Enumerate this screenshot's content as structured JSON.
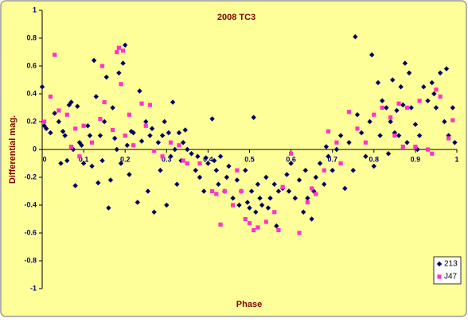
{
  "chart_data": {
    "type": "scatter",
    "title": "2008 TC3",
    "xlabel": "Phase",
    "ylabel": "Differential mag.",
    "xlim": [
      0,
      1
    ],
    "ylim": [
      -1,
      1
    ],
    "xticks": [
      0,
      0.1,
      0.2,
      0.3,
      0.4,
      0.5,
      0.6,
      0.7,
      0.8,
      0.9,
      1
    ],
    "yticks": [
      -1,
      -0.8,
      -0.6,
      -0.4,
      -0.2,
      0,
      0.2,
      0.4,
      0.6,
      0.8,
      1
    ],
    "grid": false,
    "legend": "lower right",
    "series": [
      {
        "name": "213",
        "color": "#000066",
        "marker": "diamond",
        "x": [
          0.0,
          0.005,
          0.01,
          0.02,
          0.03,
          0.04,
          0.045,
          0.05,
          0.055,
          0.06,
          0.065,
          0.07,
          0.075,
          0.08,
          0.085,
          0.09,
          0.095,
          0.1,
          0.11,
          0.115,
          0.12,
          0.125,
          0.13,
          0.135,
          0.14,
          0.145,
          0.15,
          0.155,
          0.16,
          0.165,
          0.17,
          0.175,
          0.18,
          0.185,
          0.19,
          0.195,
          0.2,
          0.205,
          0.21,
          0.215,
          0.22,
          0.23,
          0.235,
          0.24,
          0.25,
          0.255,
          0.26,
          0.265,
          0.27,
          0.28,
          0.285,
          0.29,
          0.295,
          0.3,
          0.305,
          0.31,
          0.315,
          0.32,
          0.325,
          0.33,
          0.335,
          0.34,
          0.345,
          0.35,
          0.36,
          0.37,
          0.375,
          0.38,
          0.39,
          0.395,
          0.4,
          0.41,
          0.415,
          0.42,
          0.425,
          0.43,
          0.44,
          0.445,
          0.45,
          0.46,
          0.47,
          0.475,
          0.48,
          0.49,
          0.495,
          0.5,
          0.505,
          0.51,
          0.515,
          0.52,
          0.525,
          0.53,
          0.54,
          0.545,
          0.55,
          0.56,
          0.565,
          0.57,
          0.58,
          0.59,
          0.595,
          0.6,
          0.61,
          0.62,
          0.63,
          0.635,
          0.64,
          0.65,
          0.655,
          0.66,
          0.67,
          0.68,
          0.685,
          0.69,
          0.7,
          0.71,
          0.72,
          0.73,
          0.74,
          0.75,
          0.755,
          0.76,
          0.77,
          0.78,
          0.79,
          0.795,
          0.8,
          0.81,
          0.815,
          0.82,
          0.83,
          0.835,
          0.84,
          0.845,
          0.85,
          0.855,
          0.86,
          0.865,
          0.87,
          0.875,
          0.88,
          0.885,
          0.89,
          0.9,
          0.905,
          0.91,
          0.92,
          0.93,
          0.94,
          0.945,
          0.95,
          0.96,
          0.97,
          0.975,
          0.98,
          0.99,
          0.995
        ],
        "values": [
          0.45,
          0.17,
          0.15,
          0.12,
          0.26,
          0.2,
          -0.1,
          0.13,
          0.1,
          -0.08,
          0.32,
          0.34,
          0.0,
          -0.26,
          0.31,
          0.05,
          0.03,
          -0.1,
          0.17,
          0.1,
          -0.12,
          0.64,
          0.38,
          -0.24,
          0.1,
          -0.08,
          0.2,
          0.52,
          -0.42,
          -0.22,
          0.3,
          0.08,
          0.0,
          0.55,
          -0.1,
          0.62,
          0.75,
          0.03,
          -0.18,
          0.13,
          0.12,
          -0.38,
          0.42,
          0.06,
          0.2,
          -0.3,
          0.1,
          0.15,
          -0.45,
          0.05,
          -0.15,
          0.1,
          0.2,
          -0.4,
          0.12,
          -0.05,
          0.34,
          0.0,
          -0.25,
          0.12,
          -0.08,
          0.05,
          0.14,
          0.0,
          -0.03,
          -0.15,
          -0.05,
          -0.2,
          -0.3,
          -0.06,
          -0.1,
          0.22,
          -0.08,
          -0.15,
          -0.25,
          -0.05,
          -0.3,
          -0.2,
          -0.12,
          -0.35,
          -0.22,
          -0.4,
          -0.3,
          -0.15,
          -0.38,
          -0.42,
          -0.3,
          0.23,
          -0.45,
          -0.25,
          -0.35,
          -0.4,
          -0.2,
          -0.42,
          -0.35,
          -0.25,
          -0.55,
          -0.3,
          -0.28,
          -0.18,
          -0.3,
          -0.1,
          -0.35,
          -0.22,
          -0.45,
          -0.15,
          -0.35,
          -0.5,
          -0.3,
          -0.2,
          -0.1,
          -0.25,
          0.02,
          -0.05,
          -0.15,
          0.0,
          0.1,
          -0.28,
          0.05,
          -0.15,
          0.81,
          0.25,
          0.12,
          -0.05,
          0.2,
          0.68,
          -0.12,
          0.48,
          0.1,
          0.35,
          0.3,
          -0.03,
          0.2,
          0.5,
          0.12,
          0.28,
          0.1,
          0.45,
          0.32,
          0.62,
          0.05,
          0.55,
          0.3,
          0.18,
          0.0,
          0.1,
          0.45,
          0.35,
          0.48,
          0.4,
          0.3,
          0.55,
          0.2,
          0.58,
          0.1,
          0.3,
          0.05
        ]
      },
      {
        "name": "J47",
        "color": "#ff33cc",
        "marker": "square",
        "x": [
          0.005,
          0.02,
          0.03,
          0.04,
          0.06,
          0.07,
          0.08,
          0.09,
          0.1,
          0.12,
          0.14,
          0.145,
          0.15,
          0.17,
          0.18,
          0.185,
          0.19,
          0.195,
          0.2,
          0.21,
          0.22,
          0.24,
          0.25,
          0.26,
          0.27,
          0.29,
          0.31,
          0.33,
          0.34,
          0.35,
          0.38,
          0.41,
          0.42,
          0.43,
          0.44,
          0.46,
          0.47,
          0.48,
          0.49,
          0.5,
          0.51,
          0.52,
          0.54,
          0.56,
          0.57,
          0.58,
          0.6,
          0.62,
          0.64,
          0.65,
          0.66,
          0.68,
          0.69,
          0.71,
          0.72,
          0.74,
          0.76,
          0.78,
          0.8,
          0.82,
          0.84,
          0.85,
          0.86,
          0.87,
          0.88,
          0.9,
          0.91,
          0.93,
          0.94,
          0.95,
          0.96,
          0.98,
          0.99
        ],
        "values": [
          0.2,
          0.38,
          0.68,
          0.28,
          0.25,
          0.02,
          0.15,
          -0.05,
          0.17,
          0.05,
          0.22,
          0.6,
          0.34,
          0.14,
          0.7,
          0.73,
          0.47,
          0.71,
          0.1,
          0.25,
          0.03,
          0.33,
          0.17,
          0.32,
          -0.01,
          -0.05,
          0.05,
          0.03,
          -0.08,
          -0.1,
          -0.1,
          -0.3,
          -0.32,
          -0.54,
          -0.3,
          -0.4,
          -0.15,
          -0.3,
          -0.5,
          -0.53,
          -0.58,
          -0.56,
          -0.52,
          -0.45,
          -0.58,
          -0.27,
          -0.03,
          -0.6,
          -0.38,
          -0.28,
          -0.32,
          -0.15,
          0.13,
          0.05,
          -0.1,
          0.27,
          0.15,
          0.05,
          0.25,
          0.3,
          0.23,
          0.1,
          0.33,
          0.02,
          0.3,
          0.02,
          0.35,
          0.0,
          -0.03,
          0.43,
          0.38,
          0.08,
          0.21
        ]
      }
    ]
  }
}
